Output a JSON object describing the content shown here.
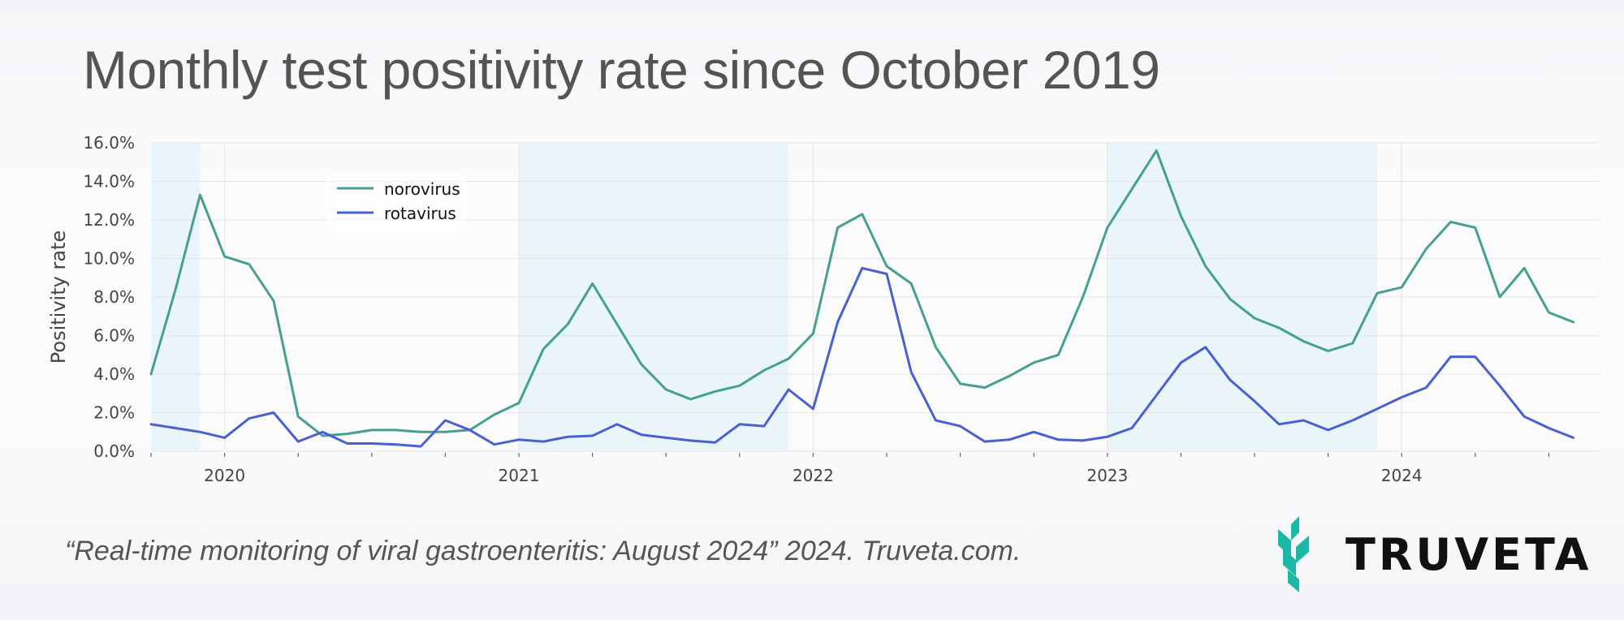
{
  "title": "Monthly test positivity rate since October 2019",
  "citation": "“Real-time monitoring of viral gastroenteritis: August 2024” 2024. Truveta.com.",
  "logo": {
    "text": "TRUVETA",
    "color": "#1bb8a8"
  },
  "chart_data": {
    "type": "line",
    "ylabel": "Positivity rate",
    "ylim": [
      0,
      16
    ],
    "y_ticks": [
      0,
      2,
      4,
      6,
      8,
      10,
      12,
      14,
      16
    ],
    "y_tick_labels": [
      "0.0%",
      "2.0%",
      "4.0%",
      "6.0%",
      "8.0%",
      "10.0%",
      "12.0%",
      "14.0%",
      "16.0%"
    ],
    "x_tick_labels": [
      "2020",
      "2021",
      "2022",
      "2023",
      "2024"
    ],
    "x_start": "2019-10",
    "x_end": "2024-08",
    "grid": true,
    "legend_position": "top-left",
    "shaded_periods": [
      {
        "start": "2019-10",
        "end": "2019-12"
      },
      {
        "start": "2021-01",
        "end": "2021-12"
      },
      {
        "start": "2023-01",
        "end": "2023-12"
      }
    ],
    "shade_color": "#e9f5f8",
    "x": [
      "2019-10",
      "2019-11",
      "2019-12",
      "2020-01",
      "2020-02",
      "2020-03",
      "2020-04",
      "2020-05",
      "2020-06",
      "2020-07",
      "2020-08",
      "2020-09",
      "2020-10",
      "2020-11",
      "2020-12",
      "2021-01",
      "2021-02",
      "2021-03",
      "2021-04",
      "2021-05",
      "2021-06",
      "2021-07",
      "2021-08",
      "2021-09",
      "2021-10",
      "2021-11",
      "2021-12",
      "2022-01",
      "2022-02",
      "2022-03",
      "2022-04",
      "2022-05",
      "2022-06",
      "2022-07",
      "2022-08",
      "2022-09",
      "2022-10",
      "2022-11",
      "2022-12",
      "2023-01",
      "2023-02",
      "2023-03",
      "2023-04",
      "2023-05",
      "2023-06",
      "2023-07",
      "2023-08",
      "2023-09",
      "2023-10",
      "2023-11",
      "2023-12",
      "2024-01",
      "2024-02",
      "2024-03",
      "2024-04",
      "2024-05",
      "2024-06",
      "2024-07",
      "2024-08"
    ],
    "series": [
      {
        "name": "norovirus",
        "color": "#45a08f",
        "values": [
          4.0,
          8.4,
          13.3,
          10.1,
          9.7,
          7.8,
          1.8,
          0.8,
          0.9,
          1.1,
          1.1,
          1.0,
          1.0,
          1.1,
          1.9,
          2.5,
          5.3,
          6.6,
          8.7,
          6.6,
          4.5,
          3.2,
          2.7,
          3.1,
          3.4,
          4.2,
          4.8,
          6.1,
          11.6,
          12.3,
          9.6,
          8.7,
          5.4,
          3.5,
          3.3,
          3.9,
          4.6,
          5.0,
          8.0,
          11.6,
          13.6,
          15.6,
          12.2,
          9.6,
          7.9,
          6.9,
          6.4,
          5.7,
          5.2,
          5.6,
          8.2,
          8.5,
          10.5,
          11.9,
          11.6,
          8.0,
          9.5,
          7.2,
          6.7
        ]
      },
      {
        "name": "rotavirus",
        "color": "#4a5fd0",
        "values": [
          1.4,
          1.2,
          1.0,
          0.7,
          1.7,
          2.0,
          0.5,
          1.0,
          0.4,
          0.4,
          0.35,
          0.25,
          1.6,
          1.1,
          0.35,
          0.6,
          0.5,
          0.75,
          0.8,
          1.4,
          0.85,
          0.7,
          0.55,
          0.45,
          1.4,
          1.3,
          3.2,
          2.2,
          6.7,
          9.5,
          9.2,
          4.1,
          1.6,
          1.3,
          0.5,
          0.6,
          1.0,
          0.6,
          0.55,
          0.75,
          1.2,
          2.9,
          4.6,
          5.4,
          3.7,
          2.6,
          1.4,
          1.6,
          1.1,
          1.6,
          2.2,
          2.8,
          3.3,
          4.9,
          4.9,
          3.4,
          1.8,
          1.2,
          0.7
        ]
      }
    ]
  }
}
